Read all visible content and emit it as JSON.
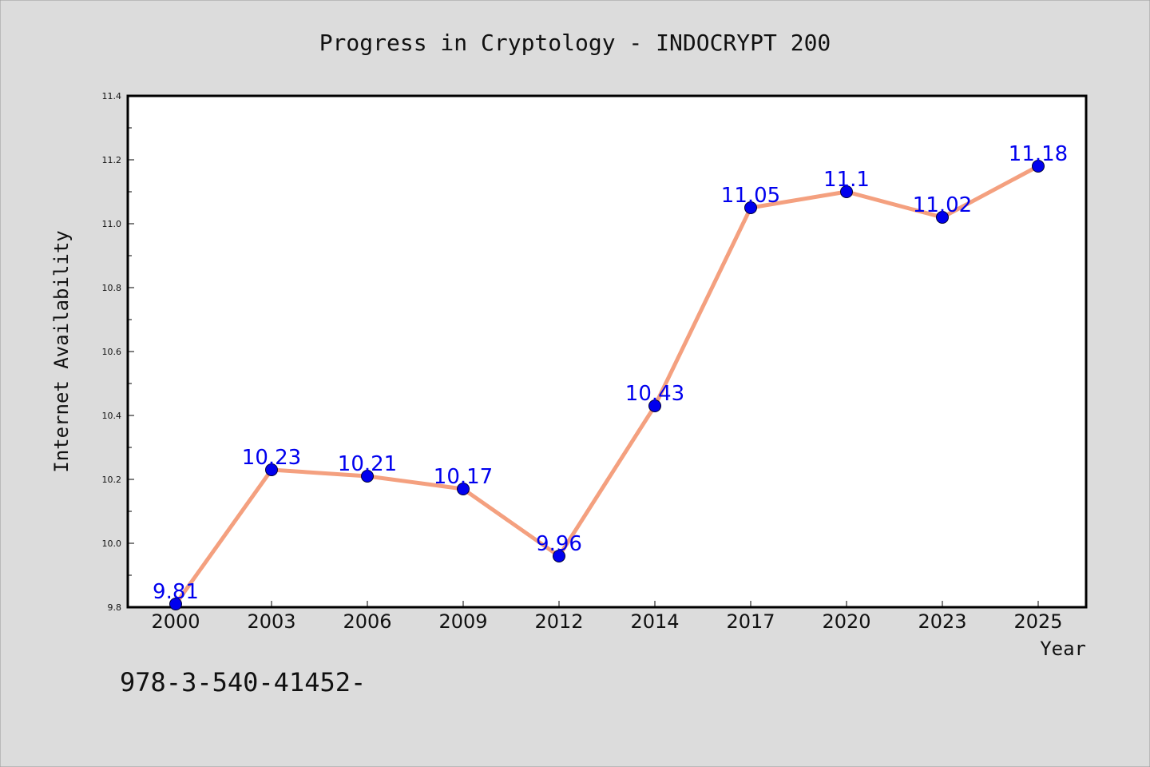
{
  "chart_data": {
    "type": "line",
    "title": "Progress in Cryptology - INDOCRYPT 200",
    "xlabel": "Year",
    "ylabel": "Internet Availability",
    "categories": [
      "2000",
      "2003",
      "2006",
      "2009",
      "2012",
      "2014",
      "2017",
      "2020",
      "2023",
      "2025"
    ],
    "values": [
      9.81,
      10.23,
      10.21,
      10.17,
      9.96,
      10.43,
      11.05,
      11.1,
      11.02,
      11.18
    ],
    "data_labels": [
      "9.81",
      "10.23",
      "10.21",
      "10.17",
      "9.96",
      "10.43",
      "11.05",
      "11.1",
      "11.02",
      "11.18"
    ],
    "ylim": [
      9.8,
      11.4
    ],
    "yticks": [
      "9.8",
      "10.0",
      "10.2",
      "10.4",
      "10.6",
      "10.8",
      "11.0",
      "11.2",
      "11.4"
    ],
    "ytick_values": [
      9.8,
      10.0,
      10.2,
      10.4,
      10.6,
      10.8,
      11.0,
      11.2,
      11.4
    ],
    "grid": false,
    "line_color": "#f4a07f",
    "marker_color": "#0000ee",
    "label_color": "#0000ee"
  },
  "footer": {
    "isbn": "978-3-540-41452-"
  }
}
